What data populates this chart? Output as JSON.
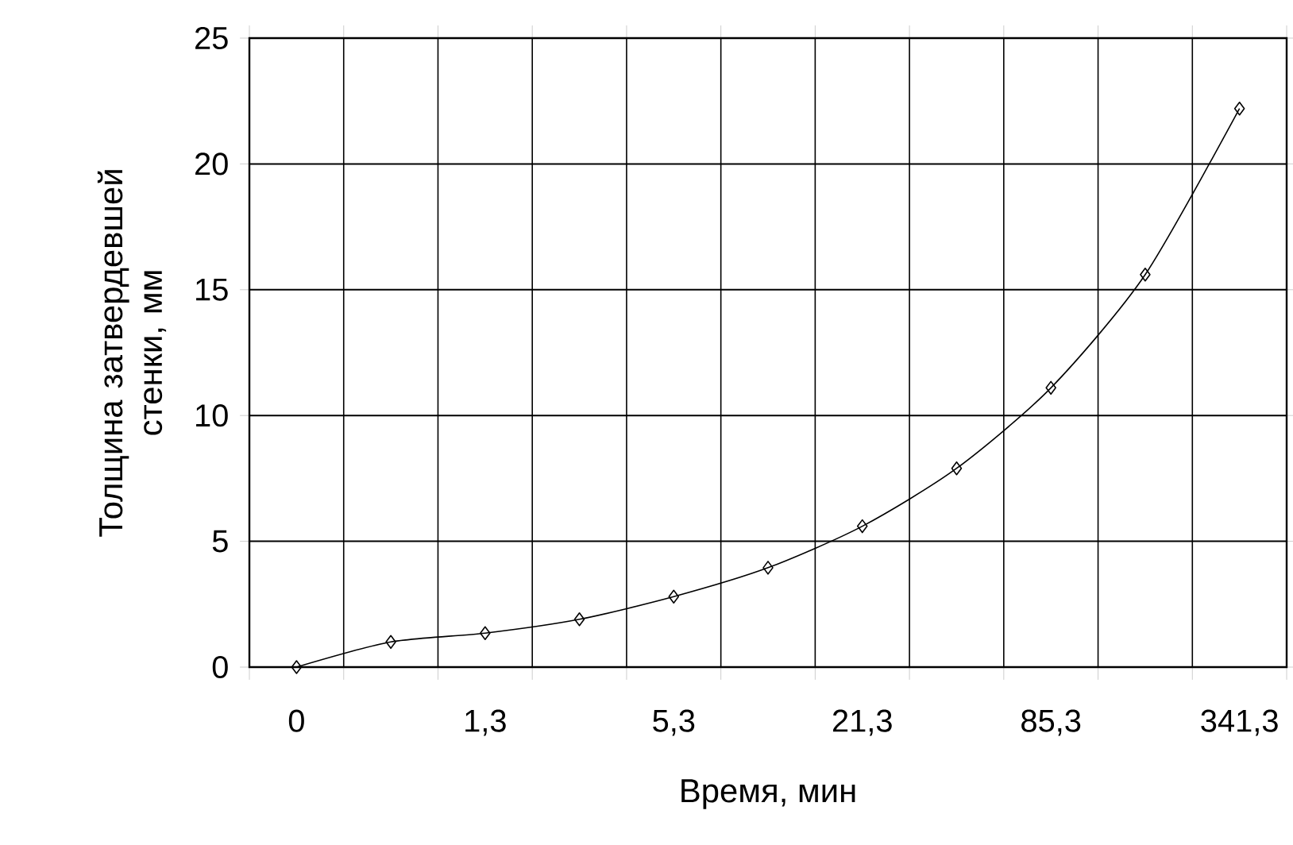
{
  "chart_data": {
    "type": "line",
    "xlabel": "Время, мин",
    "ylabel": "Толщина затвердевшей стенки, мм",
    "categories": [
      "0",
      null,
      "1,3",
      null,
      "5,3",
      null,
      "21,3",
      null,
      "85,3",
      null,
      "341,3"
    ],
    "series": [
      {
        "color": "#000000",
        "values": [
          0,
          1.0,
          1.35,
          1.9,
          2.8,
          3.95,
          5.6,
          7.9,
          11.1,
          15.6,
          22.2
        ]
      }
    ],
    "ylim": [
      0,
      25
    ],
    "yticks": [
      0,
      5,
      10,
      15,
      20,
      25
    ],
    "grid": true,
    "marker": "diamond",
    "line_style": "solid"
  }
}
